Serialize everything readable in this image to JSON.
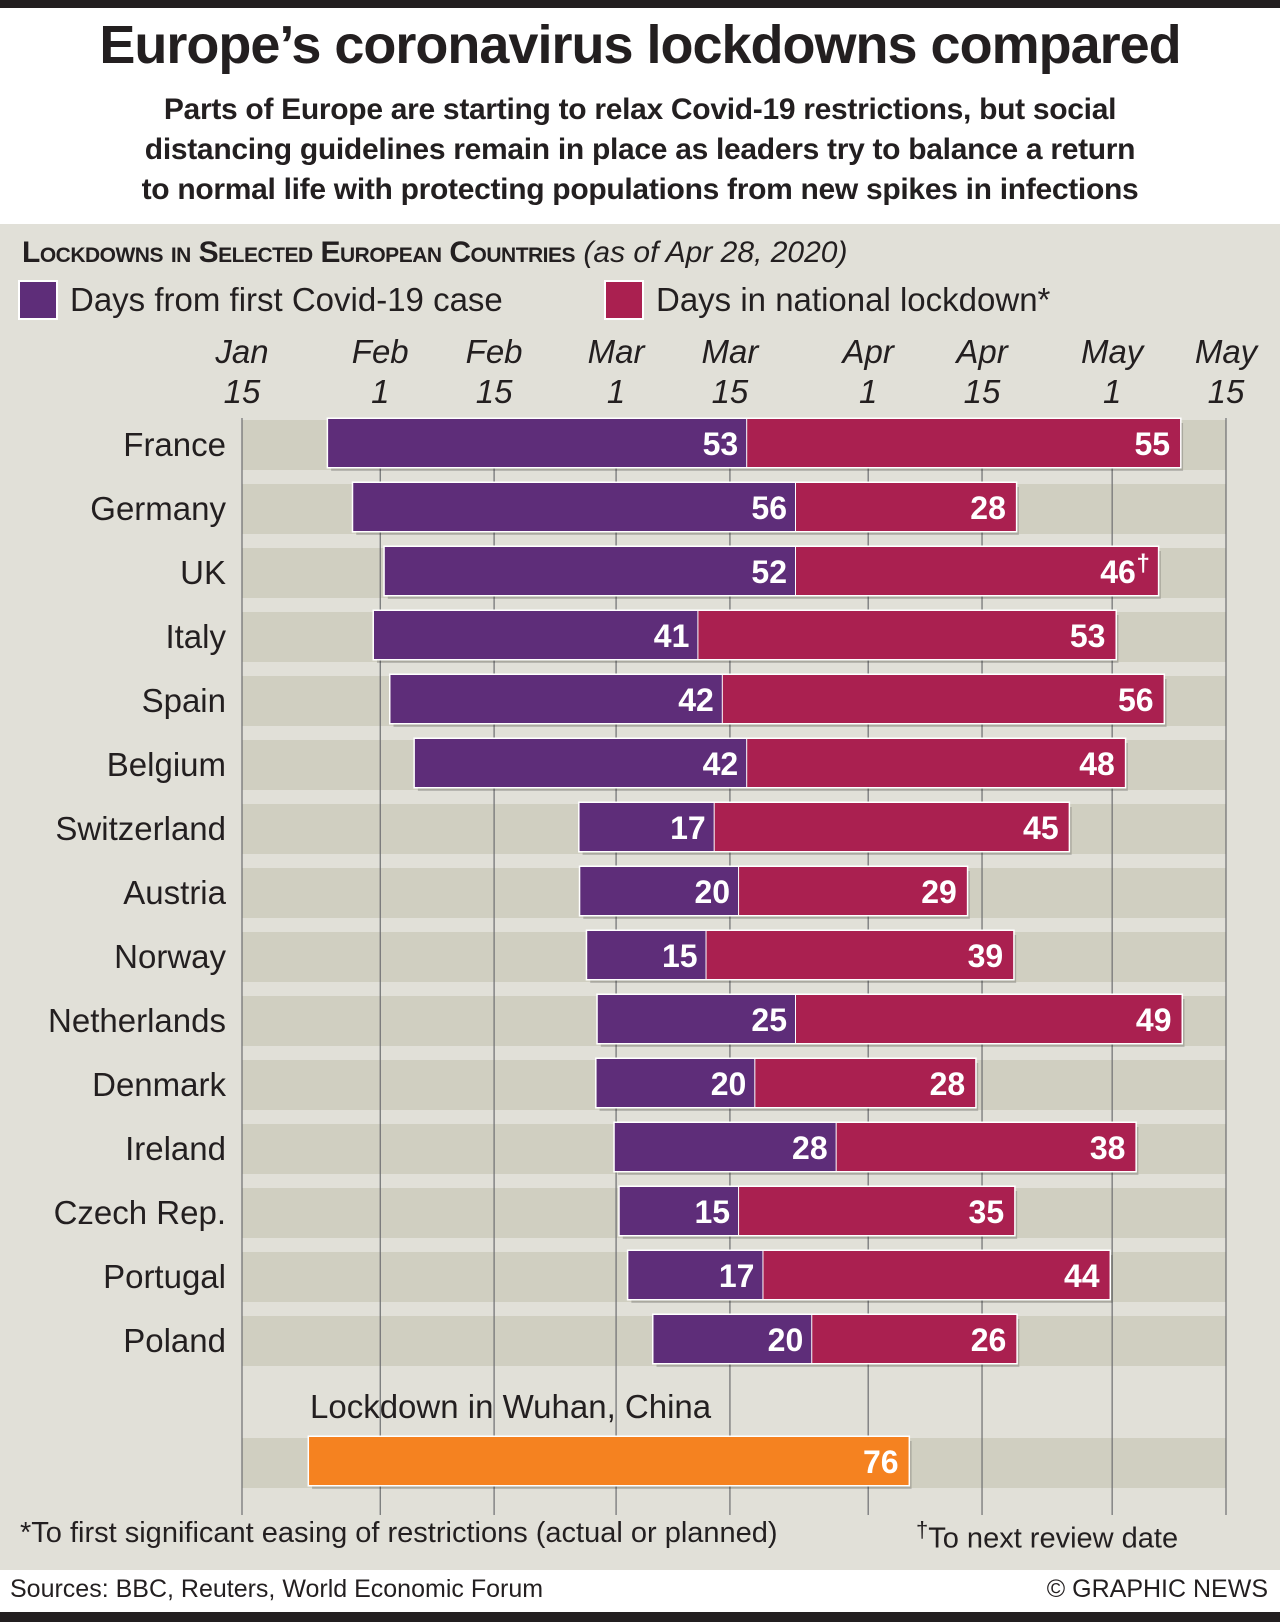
{
  "header": {
    "title": "Europe’s coronavirus lockdowns compared",
    "subtitle_lines": [
      "Parts of Europe are starting to relax Covid-19 restrictions, but social",
      "distancing guidelines remain in place as leaders try to balance a return",
      "to normal life with protecting populations from new spikes in infections"
    ]
  },
  "section": {
    "heading": "Lockdowns in Selected European Countries",
    "as_of": "(as of Apr 28, 2020)"
  },
  "legend": [
    {
      "label": "Days from first Covid-19 case",
      "color": "#5e2d79"
    },
    {
      "label": "Days in national lockdown*",
      "color": "#aa2050"
    }
  ],
  "colors": {
    "case": "#5e2d79",
    "lockdown": "#aa2050",
    "wuhan": "#f58220",
    "panel": "#e1e0d8",
    "row_band": "#d0cfc1",
    "gridline": "#6d6e71"
  },
  "chart_data": {
    "type": "bar",
    "orientation": "horizontal-stacked-timeline",
    "title": "Lockdowns in Selected European Countries (as of Apr 28, 2020)",
    "x_axis": {
      "ticks": [
        {
          "month": "Jan",
          "day": "15",
          "date": "2020-01-15"
        },
        {
          "month": "Feb",
          "day": "1",
          "date": "2020-02-01"
        },
        {
          "month": "Feb",
          "day": "15",
          "date": "2020-02-15"
        },
        {
          "month": "Mar",
          "day": "1",
          "date": "2020-03-01"
        },
        {
          "month": "Mar",
          "day": "15",
          "date": "2020-03-15"
        },
        {
          "month": "Apr",
          "day": "1",
          "date": "2020-04-01"
        },
        {
          "month": "Apr",
          "day": "15",
          "date": "2020-04-15"
        },
        {
          "month": "May",
          "day": "1",
          "date": "2020-05-01"
        },
        {
          "month": "May",
          "day": "15",
          "date": "2020-05-15"
        }
      ],
      "range": [
        "2020-01-15",
        "2020-05-15"
      ]
    },
    "series": [
      {
        "name": "Days from first Covid-19 case",
        "key": "case_days"
      },
      {
        "name": "Days in national lockdown*",
        "key": "lockdown_days"
      }
    ],
    "rows": [
      {
        "country": "France",
        "lockdown_start": "2020-03-17",
        "case_days": 53,
        "lockdown_days": 55,
        "mark": ""
      },
      {
        "country": "Germany",
        "lockdown_start": "2020-03-23",
        "case_days": 56,
        "lockdown_days": 28,
        "mark": ""
      },
      {
        "country": "UK",
        "lockdown_start": "2020-03-23",
        "case_days": 52,
        "lockdown_days": 46,
        "mark": "†"
      },
      {
        "country": "Italy",
        "lockdown_start": "2020-03-11",
        "case_days": 41,
        "lockdown_days": 53,
        "mark": ""
      },
      {
        "country": "Spain",
        "lockdown_start": "2020-03-14",
        "case_days": 42,
        "lockdown_days": 56,
        "mark": ""
      },
      {
        "country": "Belgium",
        "lockdown_start": "2020-03-17",
        "case_days": 42,
        "lockdown_days": 48,
        "mark": ""
      },
      {
        "country": "Switzerland",
        "lockdown_start": "2020-03-13",
        "case_days": 17,
        "lockdown_days": 45,
        "mark": ""
      },
      {
        "country": "Austria",
        "lockdown_start": "2020-03-16",
        "case_days": 20,
        "lockdown_days": 29,
        "mark": ""
      },
      {
        "country": "Norway",
        "lockdown_start": "2020-03-12",
        "case_days": 15,
        "lockdown_days": 39,
        "mark": ""
      },
      {
        "country": "Netherlands",
        "lockdown_start": "2020-03-23",
        "case_days": 25,
        "lockdown_days": 49,
        "mark": ""
      },
      {
        "country": "Denmark",
        "lockdown_start": "2020-03-18",
        "case_days": 20,
        "lockdown_days": 28,
        "mark": ""
      },
      {
        "country": "Ireland",
        "lockdown_start": "2020-03-28",
        "case_days": 28,
        "lockdown_days": 38,
        "mark": ""
      },
      {
        "country": "Czech Rep.",
        "lockdown_start": "2020-03-16",
        "case_days": 15,
        "lockdown_days": 35,
        "mark": ""
      },
      {
        "country": "Portugal",
        "lockdown_start": "2020-03-19",
        "case_days": 17,
        "lockdown_days": 44,
        "mark": ""
      },
      {
        "country": "Poland",
        "lockdown_start": "2020-03-25",
        "case_days": 20,
        "lockdown_days": 26,
        "mark": ""
      }
    ],
    "comparison": {
      "label": "Lockdown in Wuhan, China",
      "lockdown_start": "2020-01-23",
      "lockdown_days": 76
    },
    "grid": true
  },
  "footnotes": {
    "asterisk": "*To first significant easing of restrictions (actual or planned)",
    "dagger_mark": "†",
    "dagger": "To next review date"
  },
  "footer": {
    "sources": "Sources: BBC, Reuters, World Economic Forum",
    "credit": "© GRAPHIC NEWS"
  }
}
